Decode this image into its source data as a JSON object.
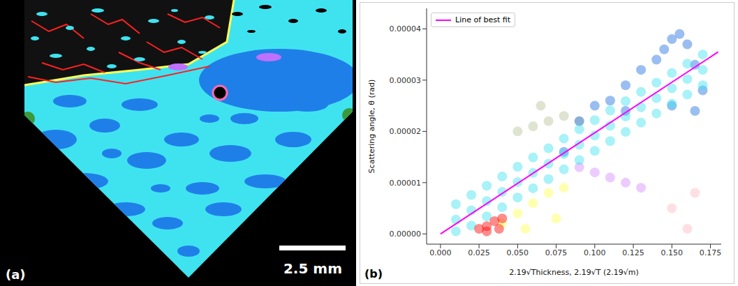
{
  "image_panel": {
    "label": "(a)",
    "scale_bar": "2.5 mm"
  },
  "chart_data": {
    "type": "scatter",
    "panel_label": "(b)",
    "x_label": "2.19√Thickness, 2.19√T (2.19√m)",
    "y_label": "Scattering angle, θ (rad)",
    "xlim": [
      -0.009,
      0.182
    ],
    "ylim": [
      -2e-06,
      4.4e-05
    ],
    "xticks": [
      {
        "value": 0,
        "label": "0.000"
      },
      {
        "value": 0.025,
        "label": "0.025"
      },
      {
        "value": 0.05,
        "label": "0.050"
      },
      {
        "value": 0.075,
        "label": "0.075"
      },
      {
        "value": 0.1,
        "label": "0.100"
      },
      {
        "value": 0.125,
        "label": "0.125"
      },
      {
        "value": 0.15,
        "label": "0.150"
      },
      {
        "value": 0.175,
        "label": "0.175"
      }
    ],
    "yticks": [
      {
        "value": 0,
        "label": "0.00000"
      },
      {
        "value": 1e-05,
        "label": "0.00001"
      },
      {
        "value": 2e-05,
        "label": "0.00002"
      },
      {
        "value": 3e-05,
        "label": "0.00003"
      },
      {
        "value": 4e-05,
        "label": "0.00004"
      }
    ],
    "grid": false,
    "legend": "upper left",
    "series": [
      {
        "color": "#b8c49a",
        "marker": "circle",
        "x": [
          0.05,
          0.06,
          0.07,
          0.08,
          0.09,
          0.065
        ],
        "values": [
          2e-05,
          2.1e-05,
          2.2e-05,
          2.3e-05,
          2.2e-05,
          2.5e-05
        ]
      },
      {
        "color": "#d58cff",
        "marker": "circle",
        "x": [
          0.09,
          0.1,
          0.11,
          0.12,
          0.13
        ],
        "values": [
          1.3e-05,
          1.2e-05,
          1.1e-05,
          1e-05,
          9e-06
        ]
      },
      {
        "color": "#ffb8c8",
        "marker": "circle",
        "x": [
          0.15,
          0.16,
          0.165
        ],
        "values": [
          5e-06,
          1e-06,
          8e-06
        ]
      },
      {
        "color": "#1f6fe0",
        "marker": "circle",
        "x": [
          0.08,
          0.09,
          0.1,
          0.11,
          0.12,
          0.13,
          0.14,
          0.145,
          0.15,
          0.155,
          0.16,
          0.165,
          0.165,
          0.17,
          0.12,
          0.15
        ],
        "values": [
          1.6e-05,
          2.2e-05,
          2.5e-05,
          2.6e-05,
          2.9e-05,
          3.2e-05,
          3.4e-05,
          3.6e-05,
          3.8e-05,
          3.9e-05,
          3.7e-05,
          3.3e-05,
          2.4e-05,
          2.8e-05,
          2.4e-05,
          2.5e-05
        ]
      },
      {
        "color": "#3fe3f0",
        "marker": "circle",
        "x": [
          0.01,
          0.01,
          0.01,
          0.02,
          0.02,
          0.02,
          0.03,
          0.03,
          0.03,
          0.04,
          0.04,
          0.04,
          0.05,
          0.05,
          0.05,
          0.06,
          0.06,
          0.06,
          0.07,
          0.07,
          0.07,
          0.08,
          0.08,
          0.08,
          0.09,
          0.09,
          0.09,
          0.1,
          0.1,
          0.1,
          0.11,
          0.11,
          0.11,
          0.12,
          0.12,
          0.12,
          0.13,
          0.13,
          0.13,
          0.14,
          0.14,
          0.14,
          0.15,
          0.15,
          0.15,
          0.16,
          0.16,
          0.16,
          0.17,
          0.17,
          0.17
        ],
        "values": [
          5e-07,
          2.8e-06,
          5.8e-06,
          1.6e-06,
          4.6e-06,
          7.6e-06,
          3.4e-06,
          6.4e-06,
          9.4e-06,
          5.2e-06,
          8.2e-06,
          1.12e-05,
          7.1e-06,
          1.01e-05,
          1.31e-05,
          8.9e-06,
          1.19e-05,
          1.49e-05,
          1.07e-05,
          1.37e-05,
          1.67e-05,
          1.26e-05,
          1.56e-05,
          1.86e-05,
          1.44e-05,
          1.74e-05,
          2.04e-05,
          1.62e-05,
          1.92e-05,
          2.22e-05,
          1.81e-05,
          2.11e-05,
          2.41e-05,
          1.99e-05,
          2.29e-05,
          2.59e-05,
          2.17e-05,
          2.47e-05,
          2.77e-05,
          2.35e-05,
          2.65e-05,
          2.95e-05,
          2.54e-05,
          2.84e-05,
          3.14e-05,
          2.72e-05,
          3.02e-05,
          3.32e-05,
          2.9e-05,
          3.2e-05,
          3.5e-05
        ]
      },
      {
        "color": "#ffff55",
        "marker": "circle",
        "x": [
          0.04,
          0.05,
          0.06,
          0.07,
          0.08,
          0.055,
          0.075
        ],
        "values": [
          2e-06,
          4e-06,
          6e-06,
          8e-06,
          9e-06,
          1e-06,
          3e-06
        ]
      },
      {
        "color": "#ff0000",
        "marker": "circle",
        "x": [
          0.025,
          0.03,
          0.035,
          0.04,
          0.03,
          0.038
        ],
        "values": [
          1e-06,
          1.5e-06,
          2.5e-06,
          3e-06,
          5e-07,
          1e-06
        ]
      },
      {
        "name": "Line of best fit",
        "type": "line",
        "line_style": "solid",
        "color": "#ff00ff",
        "x": [
          0,
          0.18
        ],
        "values": [
          0,
          3.55e-05
        ]
      }
    ]
  }
}
